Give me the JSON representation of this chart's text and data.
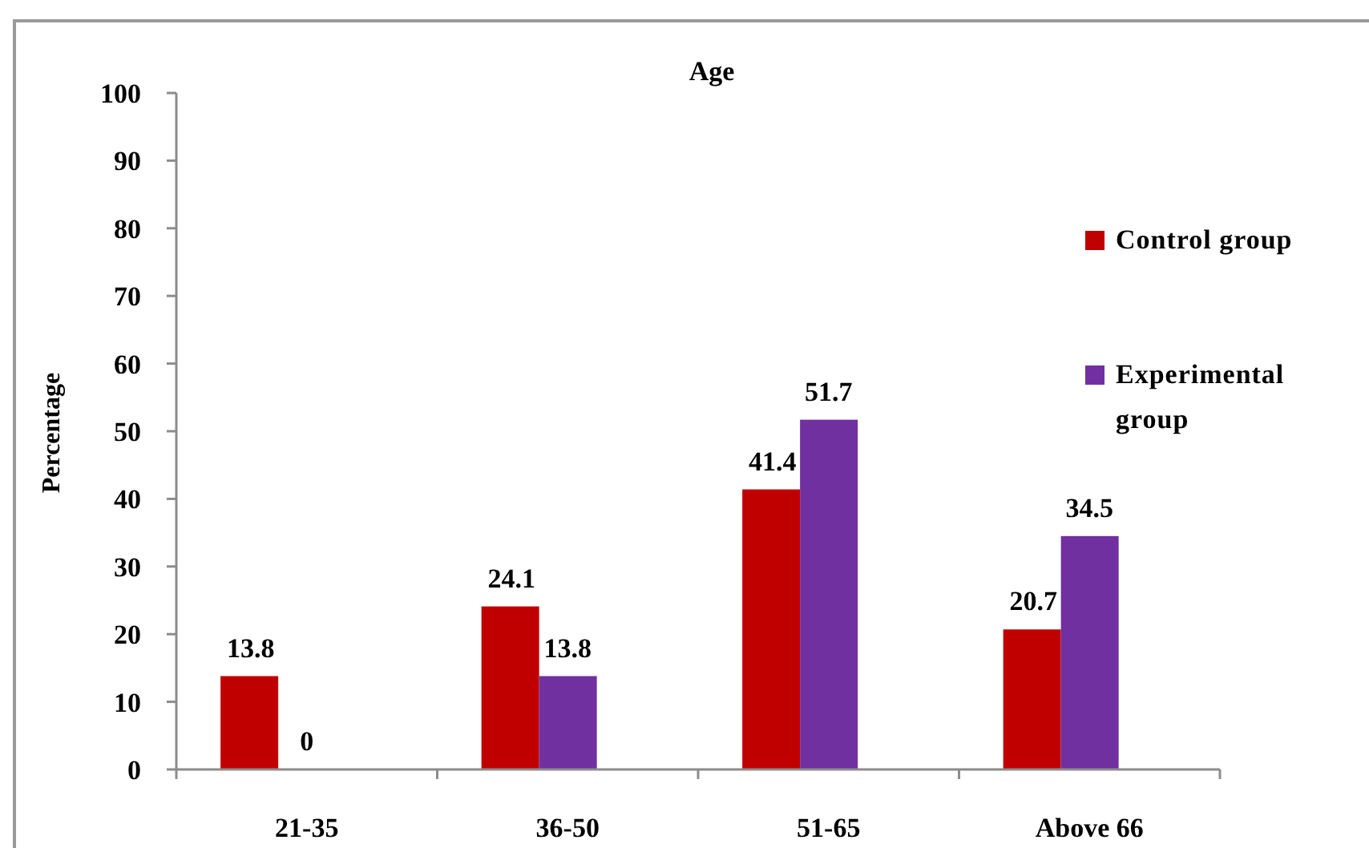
{
  "chart_data": {
    "type": "bar",
    "title": "Age",
    "ylabel": "Percentage",
    "categories": [
      "21-35",
      "36-50",
      "51-65",
      "Above 66"
    ],
    "series": [
      {
        "name": "Control group",
        "color": "#c00000",
        "values": [
          13.8,
          24.1,
          41.4,
          20.7
        ]
      },
      {
        "name": "Experimental group",
        "color": "#7030a0",
        "values": [
          0,
          13.8,
          51.7,
          34.5
        ]
      }
    ],
    "ylim": [
      0,
      100
    ],
    "yticks": [
      0,
      10,
      20,
      30,
      40,
      50,
      60,
      70,
      80,
      90,
      100
    ],
    "legend": "right",
    "data_labels": true
  }
}
